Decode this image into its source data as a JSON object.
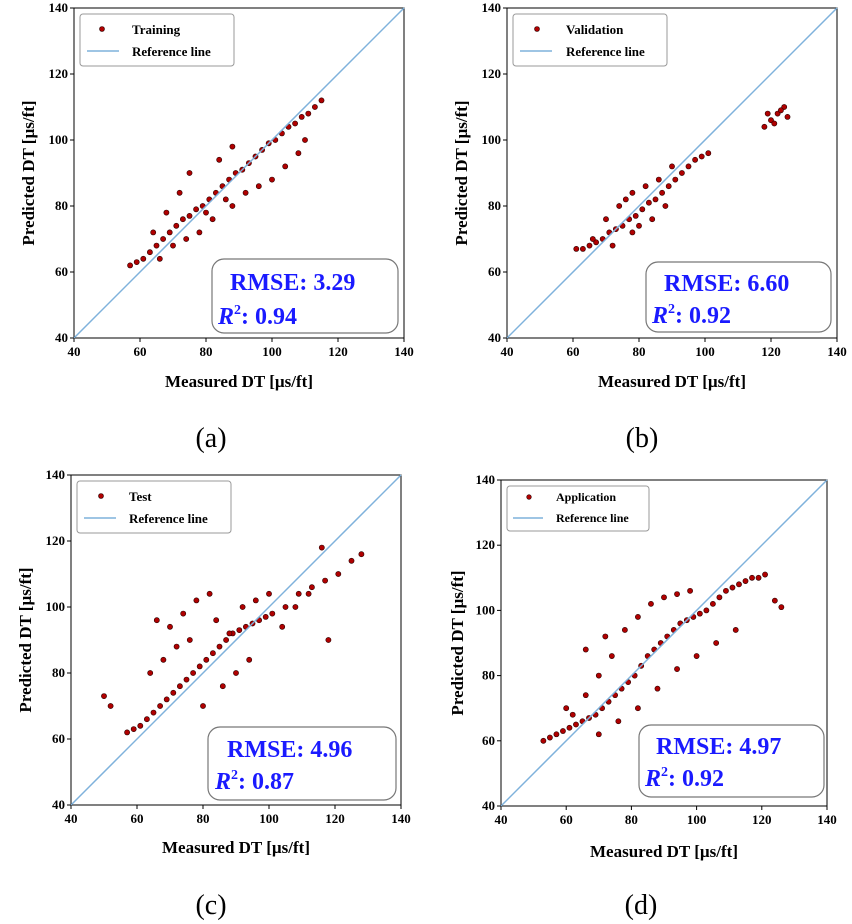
{
  "figure": {
    "panels": [
      {
        "panel_label": "(a)",
        "legend_series": "Training",
        "legend_ref": "Reference line",
        "rmse_label": "RMSE:",
        "rmse": "3.29",
        "r2_label": ": 0.94"
      },
      {
        "panel_label": "(b)",
        "legend_series": "Validation",
        "legend_ref": "Reference line",
        "rmse_label": "RMSE:",
        "rmse": "6.60",
        "r2_label": ": 0.92"
      },
      {
        "panel_label": "(c)",
        "legend_series": "Test",
        "legend_ref": "Reference line",
        "rmse_label": "RMSE:",
        "rmse": "4.96",
        "r2_label": ": 0.87"
      },
      {
        "panel_label": "(d)",
        "legend_series": "Application",
        "legend_ref": "Reference line",
        "rmse_label": "RMSE:",
        "rmse": "4.97",
        "r2_label": ": 0.92"
      }
    ]
  },
  "colors": {
    "points": "#b00000",
    "point_edge": "#2a0000",
    "reference_line": "#7fb2dc",
    "metric_text": "#1a1aff"
  },
  "chart_data": [
    {
      "type": "scatter",
      "xlabel": "Measured DT [µs/ft]",
      "ylabel": "Predicted DT [µs/ft]",
      "xlim": [
        40,
        140
      ],
      "ylim": [
        40,
        140
      ],
      "xticks": [
        40,
        60,
        80,
        100,
        120,
        140
      ],
      "yticks": [
        40,
        60,
        80,
        100,
        120,
        140
      ],
      "legend_placement": "top-left",
      "series": [
        {
          "name": "Training",
          "points": [
            [
              57,
              62
            ],
            [
              59,
              63
            ],
            [
              61,
              64
            ],
            [
              63,
              66
            ],
            [
              65,
              68
            ],
            [
              67,
              70
            ],
            [
              69,
              72
            ],
            [
              71,
              74
            ],
            [
              73,
              76
            ],
            [
              75,
              77
            ],
            [
              77,
              79
            ],
            [
              79,
              80
            ],
            [
              81,
              82
            ],
            [
              83,
              84
            ],
            [
              85,
              86
            ],
            [
              87,
              88
            ],
            [
              89,
              90
            ],
            [
              91,
              91
            ],
            [
              93,
              93
            ],
            [
              95,
              95
            ],
            [
              97,
              97
            ],
            [
              99,
              99
            ],
            [
              101,
              100
            ],
            [
              103,
              102
            ],
            [
              105,
              104
            ],
            [
              107,
              105
            ],
            [
              109,
              107
            ],
            [
              111,
              108
            ],
            [
              113,
              110
            ],
            [
              115,
              112
            ],
            [
              64,
              72
            ],
            [
              68,
              78
            ],
            [
              72,
              84
            ],
            [
              75,
              90
            ],
            [
              70,
              68
            ],
            [
              78,
              72
            ],
            [
              82,
              76
            ],
            [
              88,
              80
            ],
            [
              92,
              84
            ],
            [
              96,
              86
            ],
            [
              100,
              88
            ],
            [
              104,
              92
            ],
            [
              108,
              96
            ],
            [
              110,
              100
            ],
            [
              84,
              94
            ],
            [
              88,
              98
            ],
            [
              66,
              64
            ],
            [
              74,
              70
            ],
            [
              80,
              78
            ],
            [
              86,
              82
            ]
          ]
        },
        {
          "name": "Reference line",
          "points": [
            [
              40,
              40
            ],
            [
              140,
              140
            ]
          ]
        }
      ],
      "metrics": {
        "RMSE": 3.29,
        "R2": 0.94
      }
    },
    {
      "type": "scatter",
      "xlabel": "Measured DT [µs/ft]",
      "ylabel": "Predicted DT [µs/ft]",
      "xlim": [
        40,
        140
      ],
      "ylim": [
        40,
        140
      ],
      "xticks": [
        40,
        60,
        80,
        100,
        120,
        140
      ],
      "yticks": [
        40,
        60,
        80,
        100,
        120,
        140
      ],
      "legend_placement": "top-left",
      "series": [
        {
          "name": "Validation",
          "points": [
            [
              61,
              67
            ],
            [
              63,
              67
            ],
            [
              65,
              68
            ],
            [
              67,
              69
            ],
            [
              69,
              70
            ],
            [
              71,
              72
            ],
            [
              73,
              73
            ],
            [
              75,
              74
            ],
            [
              77,
              76
            ],
            [
              79,
              77
            ],
            [
              81,
              79
            ],
            [
              83,
              81
            ],
            [
              85,
              82
            ],
            [
              87,
              84
            ],
            [
              89,
              86
            ],
            [
              91,
              88
            ],
            [
              93,
              90
            ],
            [
              95,
              92
            ],
            [
              97,
              94
            ],
            [
              99,
              95
            ],
            [
              101,
              96
            ],
            [
              70,
              76
            ],
            [
              74,
              80
            ],
            [
              78,
              84
            ],
            [
              82,
              86
            ],
            [
              86,
              88
            ],
            [
              72,
              68
            ],
            [
              78,
              72
            ],
            [
              84,
              76
            ],
            [
              88,
              80
            ],
            [
              66,
              70
            ],
            [
              76,
              82
            ],
            [
              80,
              74
            ],
            [
              90,
              92
            ],
            [
              118,
              104
            ],
            [
              120,
              106
            ],
            [
              122,
              108
            ],
            [
              124,
              110
            ],
            [
              125,
              107
            ],
            [
              119,
              108
            ],
            [
              121,
              105
            ],
            [
              123,
              109
            ]
          ]
        },
        {
          "name": "Reference line",
          "points": [
            [
              40,
              40
            ],
            [
              140,
              140
            ]
          ]
        }
      ],
      "metrics": {
        "RMSE": 6.6,
        "R2": 0.92
      }
    },
    {
      "type": "scatter",
      "xlabel": "Measured DT [µs/ft]",
      "ylabel": "Predicted DT [µs/ft]",
      "xlim": [
        40,
        140
      ],
      "ylim": [
        40,
        140
      ],
      "xticks": [
        40,
        60,
        80,
        100,
        120,
        140
      ],
      "yticks": [
        40,
        60,
        80,
        100,
        120,
        140
      ],
      "legend_placement": "top-left",
      "series": [
        {
          "name": "Test",
          "points": [
            [
              57,
              62
            ],
            [
              59,
              63
            ],
            [
              61,
              64
            ],
            [
              63,
              66
            ],
            [
              65,
              68
            ],
            [
              67,
              70
            ],
            [
              69,
              72
            ],
            [
              71,
              74
            ],
            [
              73,
              76
            ],
            [
              75,
              78
            ],
            [
              77,
              80
            ],
            [
              79,
              82
            ],
            [
              81,
              84
            ],
            [
              83,
              86
            ],
            [
              85,
              88
            ],
            [
              87,
              90
            ],
            [
              89,
              92
            ],
            [
              91,
              93
            ],
            [
              93,
              94
            ],
            [
              95,
              95
            ],
            [
              97,
              96
            ],
            [
              99,
              97
            ],
            [
              101,
              98
            ],
            [
              105,
              100
            ],
            [
              109,
              104
            ],
            [
              113,
              106
            ],
            [
              117,
              108
            ],
            [
              121,
              110
            ],
            [
              125,
              114
            ],
            [
              128,
              116
            ],
            [
              50,
              73
            ],
            [
              52,
              70
            ],
            [
              66,
              96
            ],
            [
              70,
              94
            ],
            [
              74,
              98
            ],
            [
              78,
              102
            ],
            [
              82,
              104
            ],
            [
              84,
              96
            ],
            [
              88,
              92
            ],
            [
              92,
              100
            ],
            [
              96,
              102
            ],
            [
              100,
              104
            ],
            [
              104,
              94
            ],
            [
              108,
              100
            ],
            [
              112,
              104
            ],
            [
              116,
              118
            ],
            [
              118,
              90
            ],
            [
              64,
              80
            ],
            [
              68,
              84
            ],
            [
              72,
              88
            ],
            [
              76,
              90
            ],
            [
              80,
              70
            ],
            [
              86,
              76
            ],
            [
              90,
              80
            ],
            [
              94,
              84
            ]
          ]
        },
        {
          "name": "Reference line",
          "points": [
            [
              40,
              40
            ],
            [
              140,
              140
            ]
          ]
        }
      ],
      "metrics": {
        "RMSE": 4.96,
        "R2": 0.87
      }
    },
    {
      "type": "scatter",
      "xlabel": "Measured DT [µs/ft]",
      "ylabel": "Predicted DT [µs/ft]",
      "xlim": [
        40,
        140
      ],
      "ylim": [
        40,
        140
      ],
      "xticks": [
        40,
        60,
        80,
        100,
        120,
        140
      ],
      "yticks": [
        40,
        60,
        80,
        100,
        120,
        140
      ],
      "legend_placement": "top-left",
      "series": [
        {
          "name": "Application",
          "points": [
            [
              53,
              60
            ],
            [
              55,
              61
            ],
            [
              57,
              62
            ],
            [
              59,
              63
            ],
            [
              61,
              64
            ],
            [
              63,
              65
            ],
            [
              65,
              66
            ],
            [
              67,
              67
            ],
            [
              69,
              68
            ],
            [
              71,
              70
            ],
            [
              73,
              72
            ],
            [
              75,
              74
            ],
            [
              77,
              76
            ],
            [
              79,
              78
            ],
            [
              81,
              80
            ],
            [
              83,
              83
            ],
            [
              85,
              86
            ],
            [
              87,
              88
            ],
            [
              89,
              90
            ],
            [
              91,
              92
            ],
            [
              93,
              94
            ],
            [
              95,
              96
            ],
            [
              97,
              97
            ],
            [
              99,
              98
            ],
            [
              101,
              99
            ],
            [
              103,
              100
            ],
            [
              105,
              102
            ],
            [
              107,
              104
            ],
            [
              109,
              106
            ],
            [
              111,
              107
            ],
            [
              113,
              108
            ],
            [
              115,
              109
            ],
            [
              117,
              110
            ],
            [
              119,
              110
            ],
            [
              121,
              111
            ],
            [
              124,
              103
            ],
            [
              126,
              101
            ],
            [
              62,
              68
            ],
            [
              66,
              74
            ],
            [
              70,
              80
            ],
            [
              74,
              86
            ],
            [
              78,
              94
            ],
            [
              82,
              98
            ],
            [
              86,
              102
            ],
            [
              90,
              104
            ],
            [
              94,
              105
            ],
            [
              98,
              106
            ],
            [
              70,
              62
            ],
            [
              76,
              66
            ],
            [
              82,
              70
            ],
            [
              88,
              76
            ],
            [
              94,
              82
            ],
            [
              100,
              86
            ],
            [
              106,
              90
            ],
            [
              112,
              94
            ],
            [
              66,
              88
            ],
            [
              72,
              92
            ],
            [
              60,
              70
            ]
          ]
        },
        {
          "name": "Reference line",
          "points": [
            [
              40,
              40
            ],
            [
              140,
              140
            ]
          ]
        }
      ],
      "metrics": {
        "RMSE": 4.97,
        "R2": 0.92
      }
    }
  ]
}
